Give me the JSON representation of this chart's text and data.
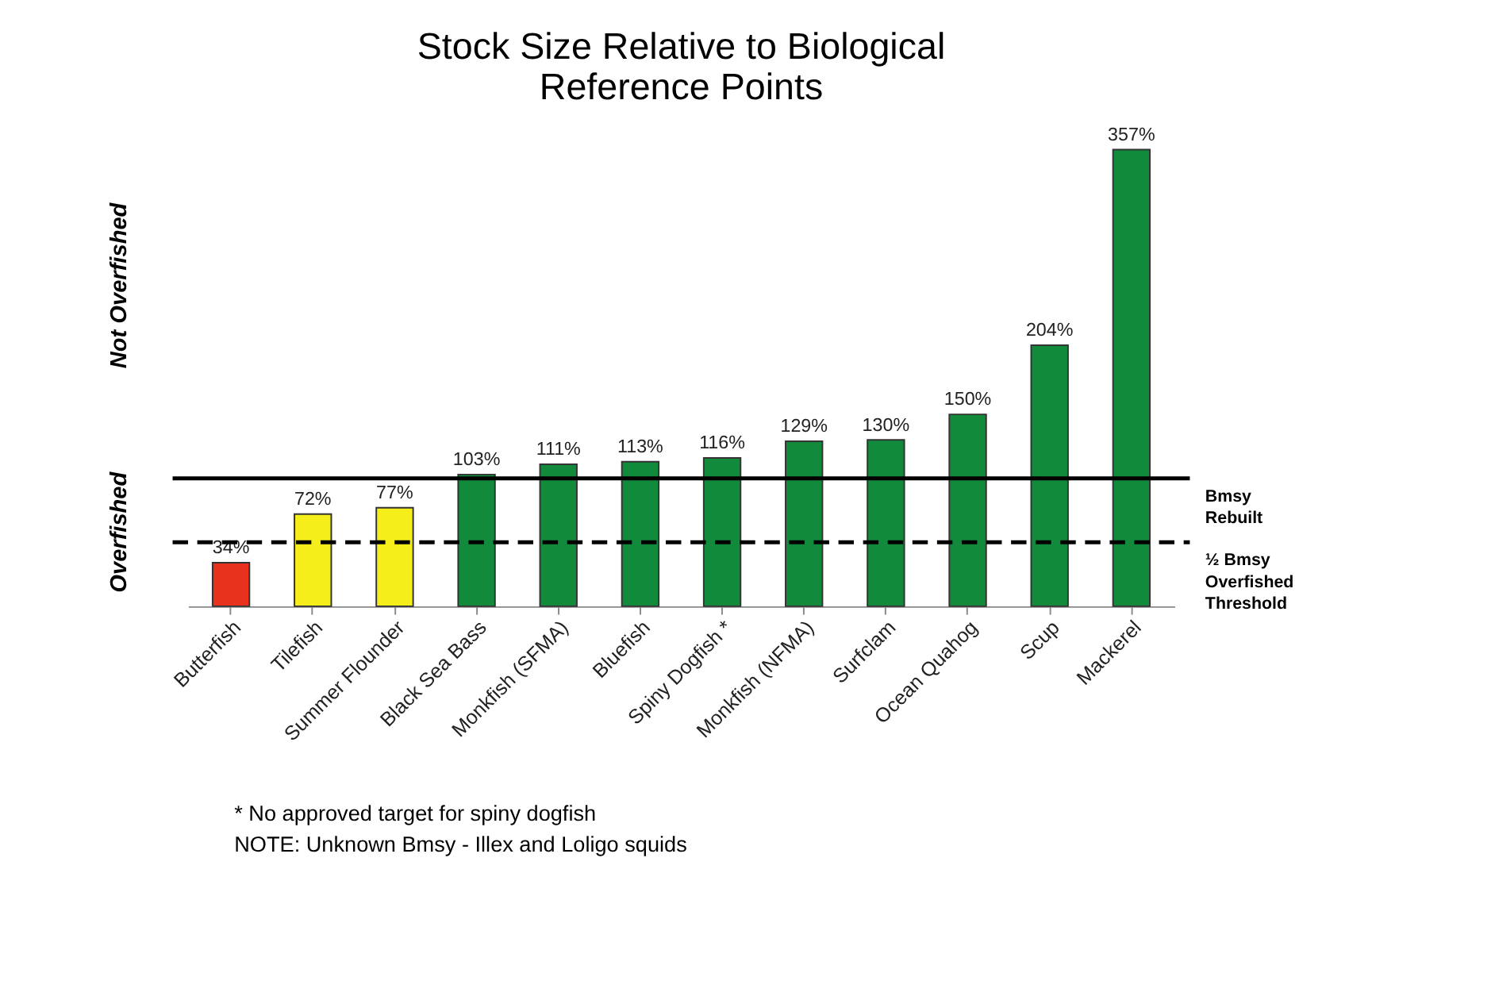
{
  "chart_data": {
    "type": "bar",
    "title": [
      "Stock Size Relative to Biological",
      "Reference Points"
    ],
    "categories": [
      "Butterfish",
      "Tilefish",
      "Summer Flounder",
      "Black Sea Bass",
      "Monkfish (SFMA)",
      "Bluefish",
      "Spiny Dogfish *",
      "Monkfish (NFMA)",
      "Surfclam",
      "Ocean Quahog",
      "Scup",
      "Mackerel"
    ],
    "values": [
      34,
      72,
      77,
      103,
      111,
      113,
      116,
      129,
      130,
      150,
      204,
      357
    ],
    "value_labels": [
      "34%",
      "72%",
      "77%",
      "103%",
      "111%",
      "113%",
      "116%",
      "129%",
      "130%",
      "150%",
      "204%",
      "357%"
    ],
    "colors": [
      "#e8321e",
      "#f5ee1a",
      "#f5ee1a",
      "#118a3c",
      "#118a3c",
      "#118a3c",
      "#118a3c",
      "#118a3c",
      "#118a3c",
      "#118a3c",
      "#118a3c",
      "#118a3c"
    ],
    "ref_lines": [
      {
        "axis": "y",
        "value": 100,
        "label": [
          "Bmsy",
          "Rebuilt"
        ],
        "line_style": "solid"
      },
      {
        "axis": "y",
        "value": 50,
        "label": [
          "½ Bmsy",
          "Overfished",
          "Threshold"
        ],
        "line_style": "dashed"
      }
    ],
    "annotations": [
      "Not Overfished",
      "Overfished",
      "* No approved target for spiny dogfish",
      "NOTE: Unknown Bmsy - Illex and Loligo squids"
    ],
    "tick_labels": "x",
    "grid": false
  }
}
